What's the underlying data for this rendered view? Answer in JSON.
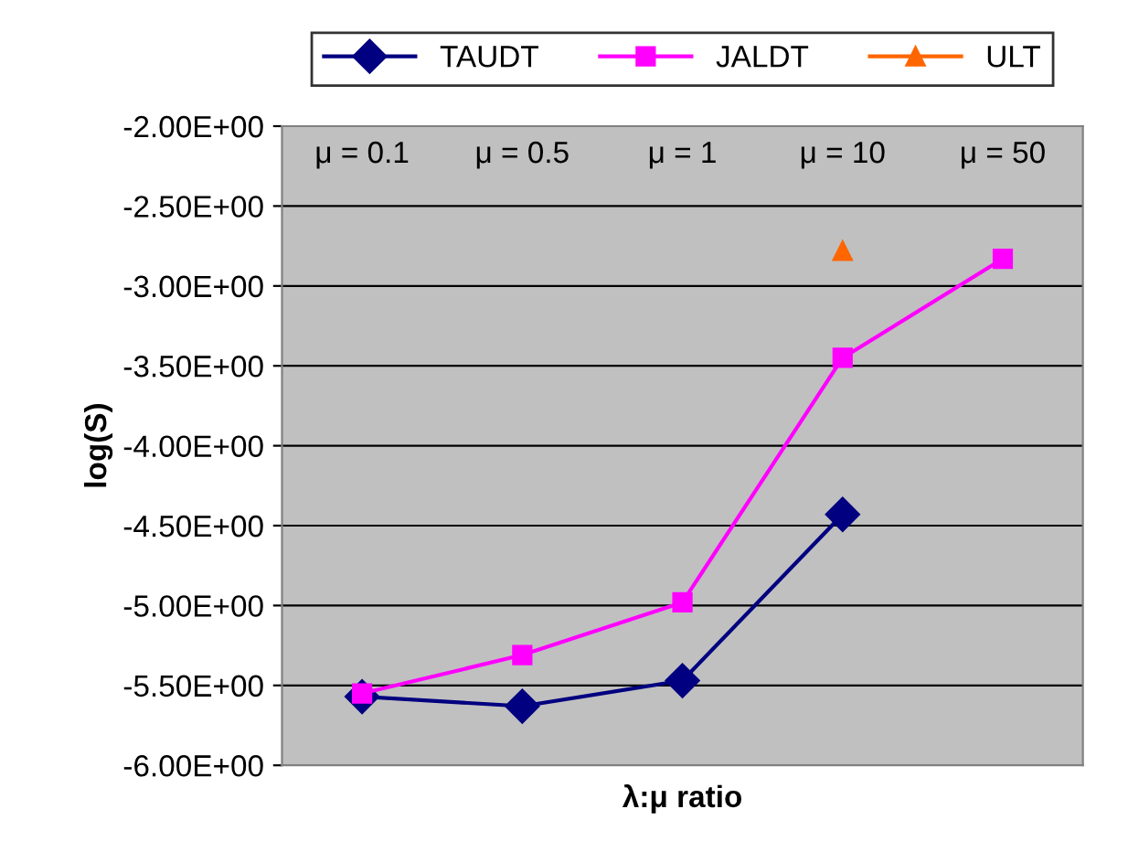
{
  "chart_data": {
    "type": "line",
    "xlabel": "λ:μ ratio",
    "ylabel": "log(S)",
    "categories": [
      "μ = 0.1",
      "μ = 0.5",
      "μ = 1",
      "μ = 10",
      "μ = 50"
    ],
    "series": [
      {
        "name": "TAUDT",
        "color": "#000080",
        "marker": "diamond",
        "values": [
          -5.57,
          -5.63,
          -5.47,
          -4.43,
          null
        ]
      },
      {
        "name": "JALDT",
        "color": "#ff00ff",
        "marker": "square",
        "values": [
          -5.55,
          -5.31,
          -4.98,
          -3.45,
          -2.83
        ]
      },
      {
        "name": "ULT",
        "color": "#ff6600",
        "marker": "triangle",
        "values": [
          null,
          null,
          null,
          -2.78,
          null
        ]
      }
    ],
    "ylim": [
      -6,
      -2
    ],
    "yticks": [
      {
        "value": -6,
        "label": "-6.00E+00"
      },
      {
        "value": -5.5,
        "label": "-5.50E+00"
      },
      {
        "value": -5,
        "label": "-5.00E+00"
      },
      {
        "value": -4.5,
        "label": "-4.50E+00"
      },
      {
        "value": -4,
        "label": "-4.00E+00"
      },
      {
        "value": -3.5,
        "label": "-3.50E+00"
      },
      {
        "value": -3,
        "label": "-3.00E+00"
      },
      {
        "value": -2.5,
        "label": "-2.50E+00"
      },
      {
        "value": -2,
        "label": "-2.00E+00"
      }
    ],
    "grid": "y",
    "legend": "top",
    "line_style": "solid"
  }
}
